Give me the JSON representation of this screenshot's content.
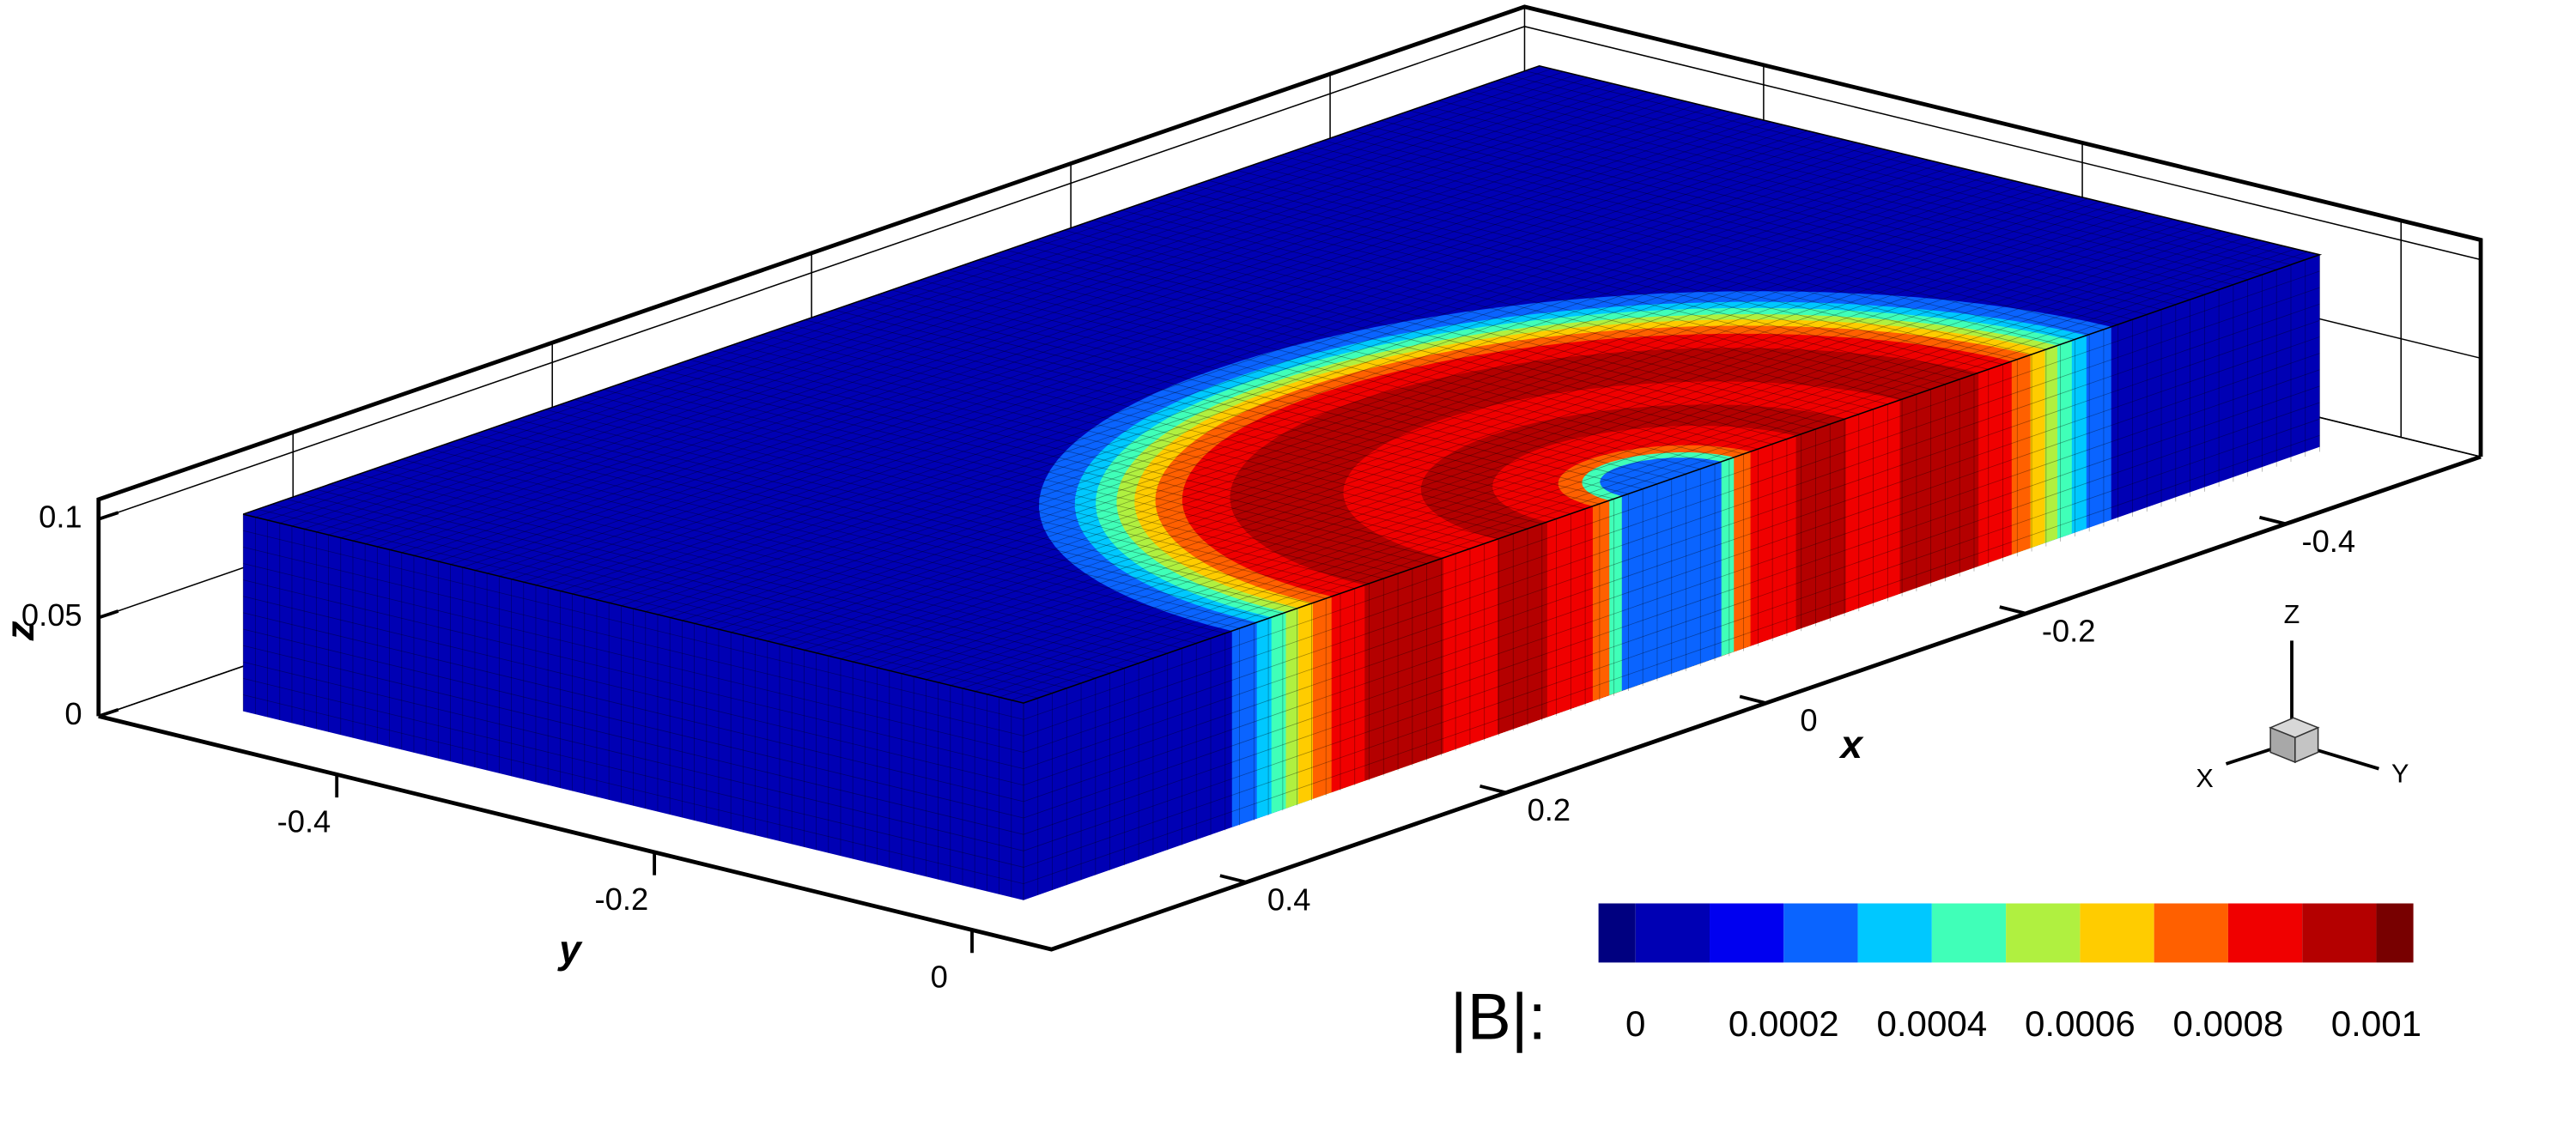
{
  "chart_data": {
    "type": "contour3d",
    "xlabel": "x",
    "ylabel": "y",
    "zlabel": "z",
    "xlim": [
      0.55,
      -0.55
    ],
    "xticks": [
      0.4,
      0.2,
      0,
      -0.2,
      -0.4
    ],
    "ylim": [
      -0.55,
      0.05
    ],
    "yticks": [
      -0.4,
      -0.2,
      0
    ],
    "zlim": [
      0,
      0.11
    ],
    "zticks": [
      0,
      0.05,
      0.1
    ],
    "grid": true,
    "colorbar": {
      "title": "|B|:",
      "lim": [
        -5e-05,
        0.00105
      ],
      "levels": [
        0,
        0.0001,
        0.0002,
        0.0003,
        0.0004,
        0.0005,
        0.0006,
        0.0007,
        0.0008,
        0.0009,
        0.001
      ],
      "ticks": [
        0,
        0.0002,
        0.0004,
        0.0006,
        0.0008,
        0.001
      ],
      "colors": [
        "#000080",
        "#0000b4",
        "#0000f0",
        "#0a64ff",
        "#00c8ff",
        "#40ffb8",
        "#b0f040",
        "#ffcc00",
        "#ff6000",
        "#f00000",
        "#b40000",
        "#780000"
      ]
    },
    "triad_labels": [
      "X",
      "Y",
      "Z"
    ]
  }
}
